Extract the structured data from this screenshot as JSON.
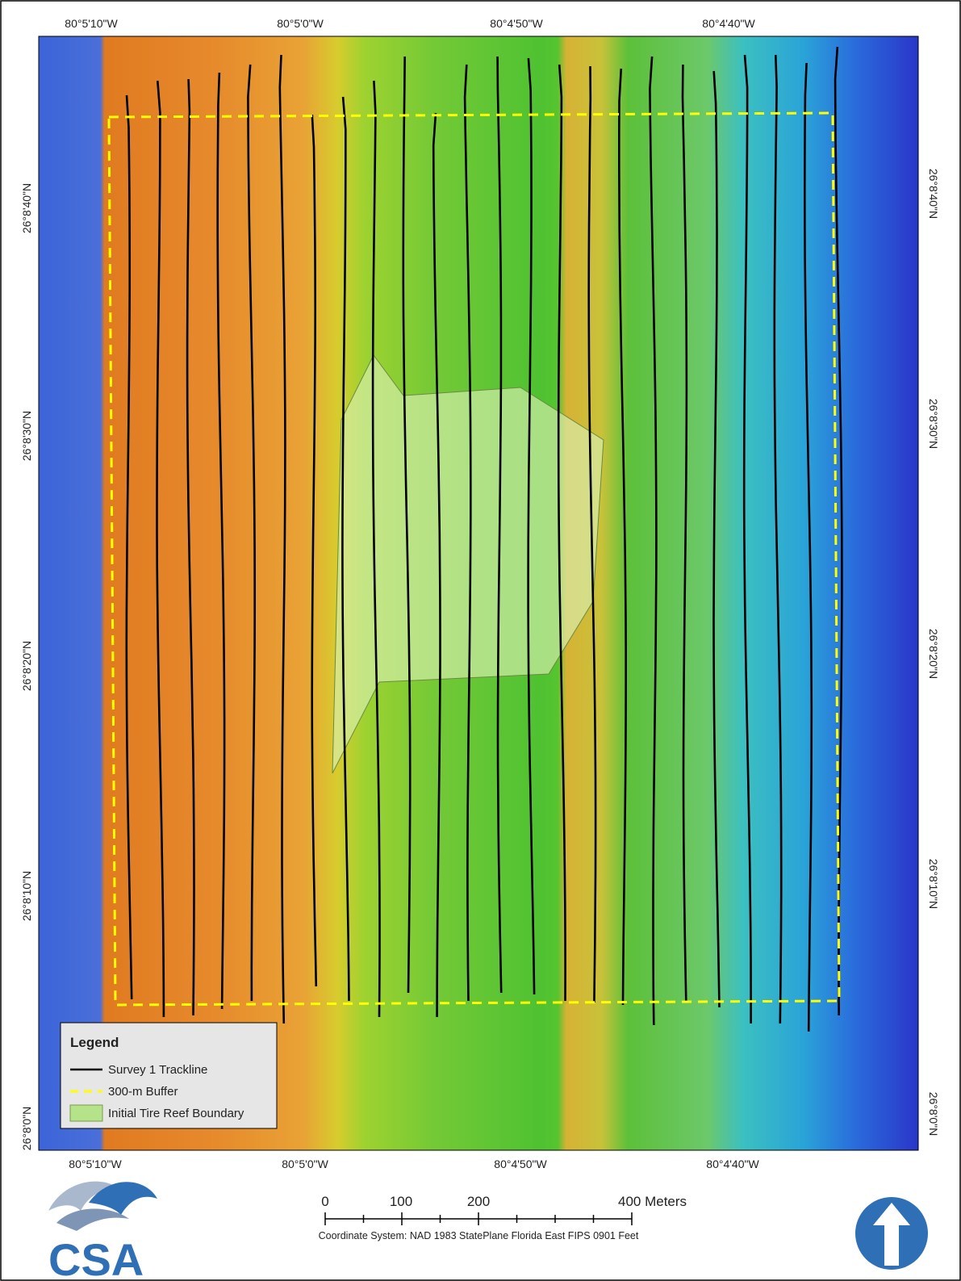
{
  "map": {
    "longitude_labels_top": [
      "80°5'10\"W",
      "80°5'0\"W",
      "80°4'50\"W",
      "80°4'40\"W"
    ],
    "longitude_labels_bottom": [
      "80°5'10\"W",
      "80°5'0\"W",
      "80°4'50\"W",
      "80°4'40\"W"
    ],
    "latitude_labels_left": [
      "26°8'40\"N",
      "26°8'30\"N",
      "26°8'20\"N",
      "26°8'10\"N",
      "26°8'0\"N"
    ],
    "latitude_labels_right": [
      "26°8'40\"N",
      "26°8'30\"N",
      "26°8'20\"N",
      "26°8'10\"N",
      "26°8'0\"N"
    ],
    "legend": {
      "title": "Legend",
      "items": [
        "Survey 1 Trackline",
        "300-m Buffer",
        "Initial Tire Reef Boundary"
      ]
    },
    "scale_bar": {
      "labels": [
        "0",
        "100",
        "200",
        "400 Meters"
      ]
    },
    "coordinate_system": "Coordinate System: NAD 1983 StatePlane Florida East FIPS 0901 Feet",
    "logo": "CSA"
  }
}
